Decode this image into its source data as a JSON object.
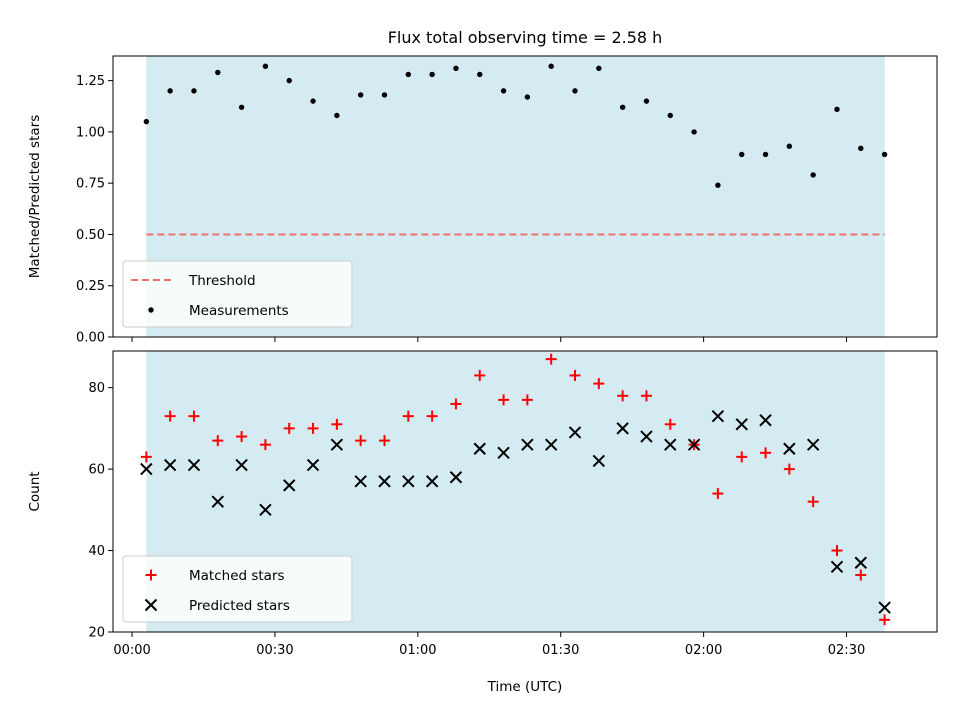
{
  "chart_data": {
    "type": "scatter",
    "title": "Flux total observing time = 2.58 h",
    "xlabel": "Time (UTC)",
    "x_ticks": [
      "00:00",
      "00:30",
      "01:00",
      "01:30",
      "02:00",
      "02:30"
    ],
    "x_range_minutes": [
      -4,
      169
    ],
    "shaded_window_minutes": [
      3,
      158
    ],
    "shade_color": "#d3ebf1",
    "grid": false,
    "panels": [
      {
        "id": "ratio",
        "ylabel": "Matched/Predicted stars",
        "ylim": [
          0,
          1.37
        ],
        "y_ticks": [
          0.0,
          0.25,
          0.5,
          0.75,
          1.0,
          1.25
        ],
        "y_tick_labels": [
          "0.00",
          "0.25",
          "0.50",
          "0.75",
          "1.00",
          "1.25"
        ],
        "legend_position": "lower-left",
        "series": [
          {
            "name": "Threshold",
            "kind": "hline",
            "color": "#f07070",
            "y": 0.5,
            "x": [
              3,
              158
            ]
          },
          {
            "name": "Measurements",
            "kind": "dot",
            "color": "#000000",
            "x": [
              3,
              8,
              13,
              18,
              23,
              28,
              33,
              38,
              43,
              48,
              53,
              58,
              63,
              68,
              73,
              78,
              83,
              88,
              93,
              98,
              103,
              108,
              113,
              118,
              123,
              128,
              133,
              138,
              143,
              148,
              153,
              158
            ],
            "y": [
              1.05,
              1.2,
              1.2,
              1.29,
              1.12,
              1.32,
              1.25,
              1.15,
              1.08,
              1.18,
              1.18,
              1.28,
              1.28,
              1.31,
              1.28,
              1.2,
              1.17,
              1.32,
              1.2,
              1.31,
              1.12,
              1.15,
              1.08,
              1.0,
              0.74,
              0.89,
              0.89,
              0.93,
              0.79,
              1.11,
              0.92,
              0.89
            ]
          }
        ]
      },
      {
        "id": "count",
        "ylabel": "Count",
        "ylim": [
          20,
          89
        ],
        "y_ticks": [
          20,
          40,
          60,
          80
        ],
        "y_tick_labels": [
          "20",
          "40",
          "60",
          "80"
        ],
        "legend_position": "lower-left",
        "series": [
          {
            "name": "Matched stars",
            "kind": "plus",
            "color": "#ff0000",
            "x": [
              3,
              8,
              13,
              18,
              23,
              28,
              33,
              38,
              43,
              48,
              53,
              58,
              63,
              68,
              73,
              78,
              83,
              88,
              93,
              98,
              103,
              108,
              113,
              118,
              123,
              128,
              133,
              138,
              143,
              148,
              153,
              158
            ],
            "y": [
              63,
              73,
              73,
              67,
              68,
              66,
              70,
              70,
              71,
              67,
              67,
              73,
              73,
              76,
              83,
              77,
              77,
              87,
              83,
              81,
              78,
              78,
              71,
              66,
              54,
              63,
              64,
              60,
              52,
              40,
              34,
              23
            ]
          },
          {
            "name": "Predicted stars",
            "kind": "x",
            "color": "#000000",
            "x": [
              3,
              8,
              13,
              18,
              23,
              28,
              33,
              38,
              43,
              48,
              53,
              58,
              63,
              68,
              73,
              78,
              83,
              88,
              93,
              98,
              103,
              108,
              113,
              118,
              123,
              128,
              133,
              138,
              143,
              148,
              153,
              158
            ],
            "y": [
              60,
              61,
              61,
              52,
              61,
              50,
              56,
              61,
              66,
              57,
              57,
              57,
              57,
              58,
              65,
              64,
              66,
              66,
              69,
              62,
              70,
              68,
              66,
              66,
              73,
              71,
              72,
              65,
              66,
              36,
              37,
              26
            ]
          }
        ]
      }
    ]
  }
}
